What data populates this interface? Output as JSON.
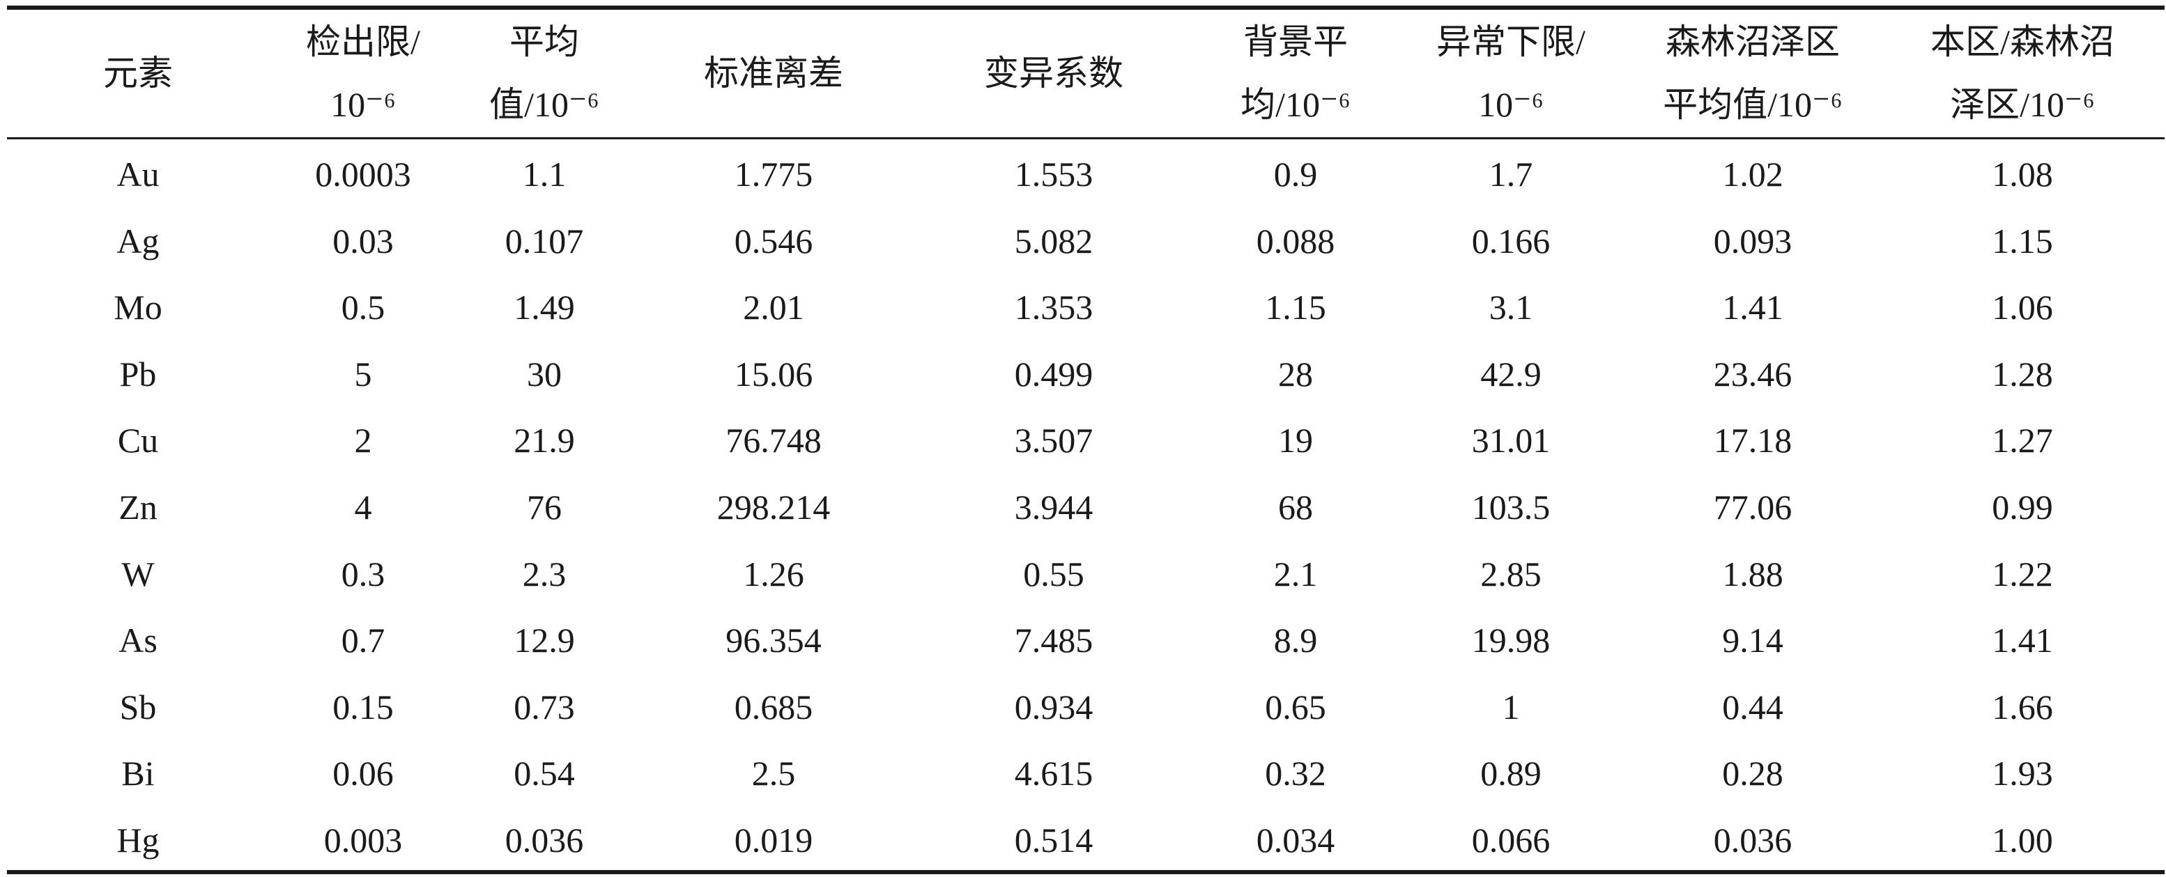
{
  "table": {
    "headers": [
      [
        "元素"
      ],
      [
        "检出限/",
        "10⁻⁶"
      ],
      [
        "平均",
        "值/10⁻⁶"
      ],
      [
        "标准离差"
      ],
      [
        "变异系数"
      ],
      [
        "背景平",
        "均/10⁻⁶"
      ],
      [
        "异常下限/",
        "10⁻⁶"
      ],
      [
        "森林沼泽区",
        "平均值/10⁻⁶"
      ],
      [
        "本区/森林沼",
        "泽区/10⁻⁶"
      ]
    ],
    "rows": [
      [
        "Au",
        "0.0003",
        "1.1",
        "1.775",
        "1.553",
        "0.9",
        "1.7",
        "1.02",
        "1.08"
      ],
      [
        "Ag",
        "0.03",
        "0.107",
        "0.546",
        "5.082",
        "0.088",
        "0.166",
        "0.093",
        "1.15"
      ],
      [
        "Mo",
        "0.5",
        "1.49",
        "2.01",
        "1.353",
        "1.15",
        "3.1",
        "1.41",
        "1.06"
      ],
      [
        "Pb",
        "5",
        "30",
        "15.06",
        "0.499",
        "28",
        "42.9",
        "23.46",
        "1.28"
      ],
      [
        "Cu",
        "2",
        "21.9",
        "76.748",
        "3.507",
        "19",
        "31.01",
        "17.18",
        "1.27"
      ],
      [
        "Zn",
        "4",
        "76",
        "298.214",
        "3.944",
        "68",
        "103.5",
        "77.06",
        "0.99"
      ],
      [
        "W",
        "0.3",
        "2.3",
        "1.26",
        "0.55",
        "2.1",
        "2.85",
        "1.88",
        "1.22"
      ],
      [
        "As",
        "0.7",
        "12.9",
        "96.354",
        "7.485",
        "8.9",
        "19.98",
        "9.14",
        "1.41"
      ],
      [
        "Sb",
        "0.15",
        "0.73",
        "0.685",
        "0.934",
        "0.65",
        "1",
        "0.44",
        "1.66"
      ],
      [
        "Bi",
        "0.06",
        "0.54",
        "2.5",
        "4.615",
        "0.32",
        "0.89",
        "0.28",
        "1.93"
      ],
      [
        "Hg",
        "0.003",
        "0.036",
        "0.019",
        "0.514",
        "0.034",
        "0.066",
        "0.036",
        "1.00"
      ]
    ]
  }
}
